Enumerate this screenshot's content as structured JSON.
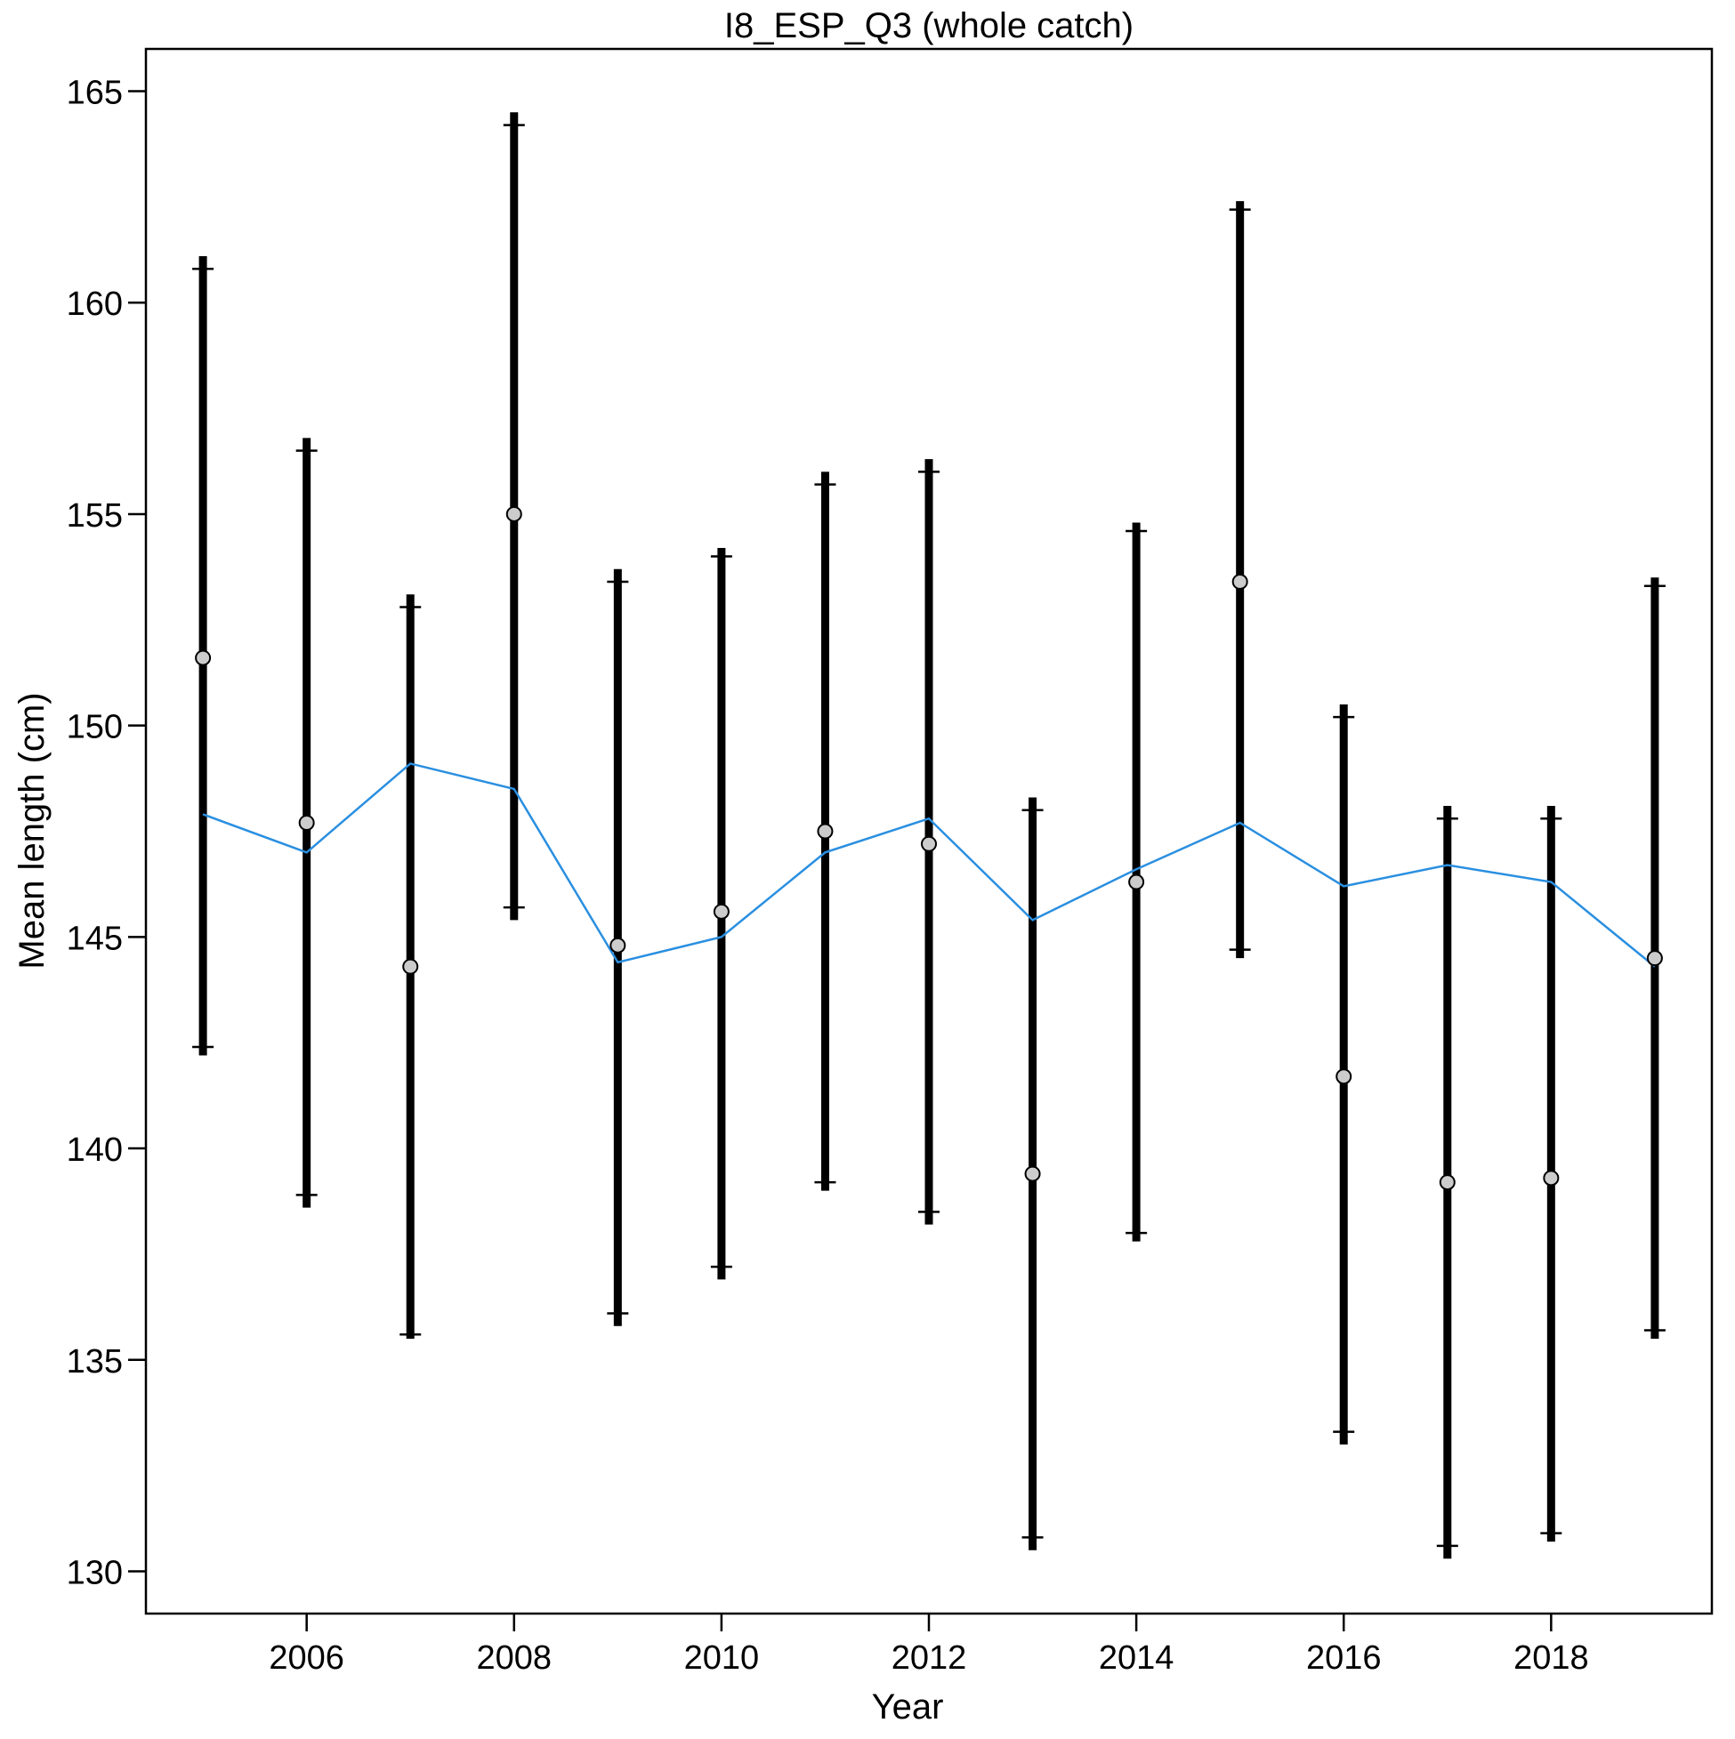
{
  "chart_data": {
    "type": "scatter",
    "title": "I8_ESP_Q3 (whole catch)",
    "xlabel": "Year",
    "ylabel": "Mean length (cm)",
    "xlim": [
      2004.45,
      2019.55
    ],
    "ylim": [
      129.0,
      166.0
    ],
    "x_ticks": [
      2006,
      2008,
      2010,
      2012,
      2014,
      2016,
      2018
    ],
    "y_ticks": [
      130,
      135,
      140,
      145,
      150,
      155,
      160,
      165
    ],
    "grid": false,
    "legend": "none",
    "colors": {
      "observed_point_fill": "#cccccc",
      "observed_point_stroke": "#000000",
      "error_bar": "#000000",
      "expected_line": "#2a8fe0"
    },
    "series": [
      {
        "kind": "observed",
        "x": [
          2005,
          2006,
          2007,
          2008,
          2009,
          2010,
          2011,
          2012,
          2013,
          2014,
          2015,
          2016,
          2017,
          2018,
          2019
        ],
        "y": [
          151.6,
          147.7,
          144.3,
          155.0,
          144.8,
          145.6,
          147.5,
          147.2,
          139.4,
          146.3,
          153.4,
          141.7,
          139.2,
          139.3,
          144.5
        ],
        "y_low": [
          142.2,
          138.6,
          135.5,
          145.4,
          135.8,
          136.9,
          139.0,
          138.2,
          130.5,
          137.8,
          144.5,
          133.0,
          130.3,
          130.7,
          135.5
        ],
        "y_high": [
          161.1,
          156.8,
          153.1,
          164.5,
          153.7,
          154.2,
          156.0,
          156.3,
          148.3,
          154.8,
          162.4,
          150.5,
          148.1,
          148.1,
          153.5
        ],
        "y_low_inner": [
          142.4,
          138.9,
          135.6,
          145.7,
          136.1,
          137.2,
          139.2,
          138.5,
          130.8,
          138.0,
          144.7,
          133.3,
          130.6,
          130.9,
          135.7
        ],
        "y_high_inner": [
          160.8,
          156.5,
          152.8,
          164.2,
          153.4,
          154.0,
          155.7,
          156.0,
          148.0,
          154.6,
          162.2,
          150.2,
          147.8,
          147.8,
          153.3
        ]
      },
      {
        "kind": "expected",
        "x": [
          2005,
          2006,
          2007,
          2008,
          2009,
          2010,
          2011,
          2012,
          2013,
          2014,
          2015,
          2016,
          2017,
          2018,
          2019
        ],
        "y": [
          147.9,
          147.0,
          149.1,
          148.5,
          144.4,
          145.0,
          147.0,
          147.8,
          145.4,
          146.6,
          147.7,
          146.2,
          146.7,
          146.3,
          144.3
        ]
      }
    ]
  }
}
